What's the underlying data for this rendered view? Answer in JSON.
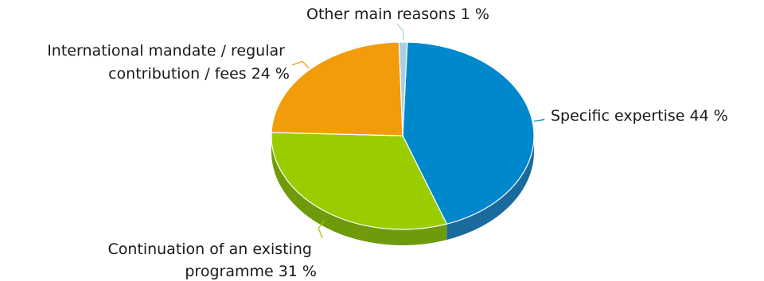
{
  "chart_data": {
    "type": "pie",
    "style": "3d",
    "legend": "none",
    "slices": [
      {
        "label": "Specific expertise",
        "value": 44,
        "value_label": "44 %",
        "color": "#0088cc",
        "side_color": "#1a6a9e"
      },
      {
        "label": "Continuation of an existing programme",
        "value": 31,
        "value_label": "31 %",
        "color": "#9acd00",
        "side_color": "#6f9a0c"
      },
      {
        "label": "International mandate / regular contribution / fees",
        "value": 24,
        "value_label": "24 %",
        "color": "#f29c0c",
        "side_color": "#c07a0a"
      },
      {
        "label": "Other main reasons",
        "value": 1,
        "value_label": "1 %",
        "color": "#a9cfe6",
        "side_color": "#7fa8c2"
      }
    ],
    "labels": {
      "expertise": [
        "Specific expertise 44 %"
      ],
      "continuation": [
        "Continuation of an existing",
        "programme 31 %"
      ],
      "mandate": [
        "International mandate / regular",
        "contribution / fees 24 %"
      ],
      "other": [
        "Other main reasons 1 %"
      ]
    }
  }
}
